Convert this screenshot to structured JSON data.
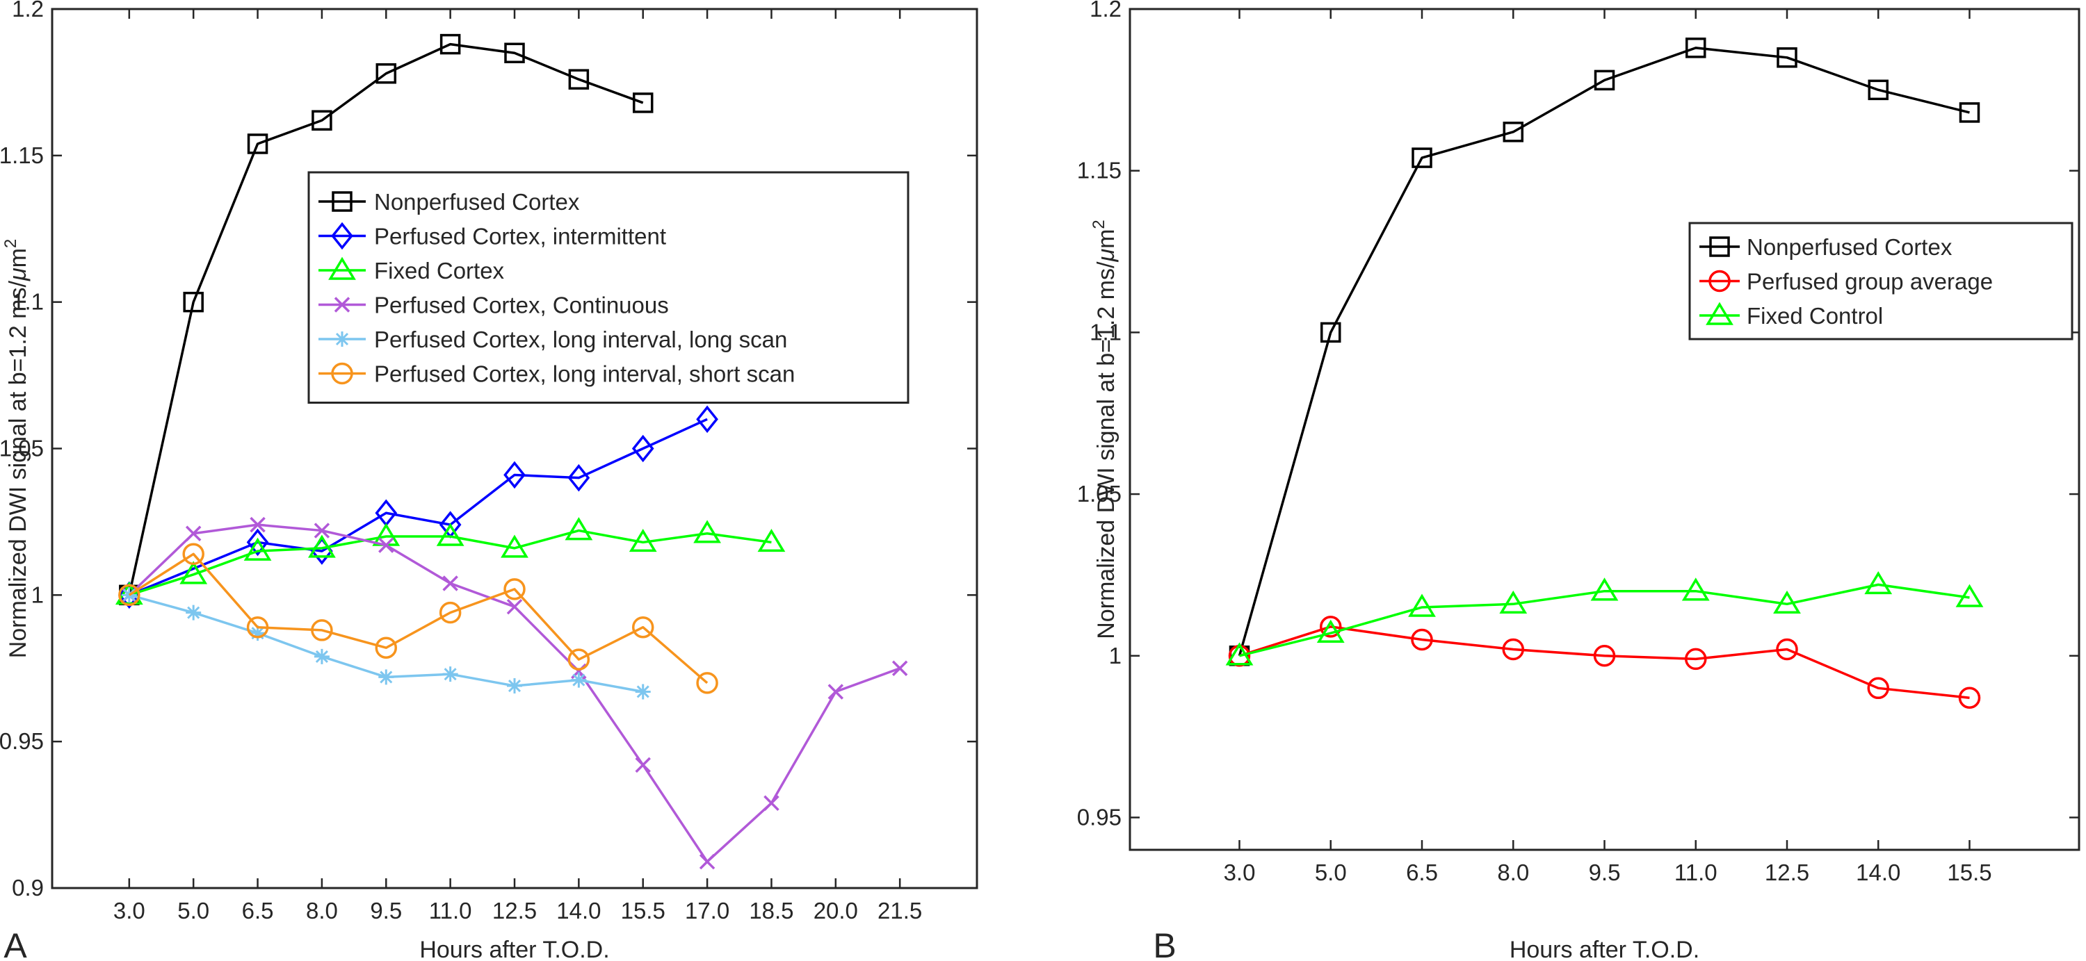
{
  "chart_data": [
    {
      "panel_letter": "A",
      "type": "line",
      "xlabel": "Hours after T.O.D.",
      "ylabel_parts": [
        "Normalized DWI signal at b=1.2 ms/",
        "μ",
        "m",
        "2"
      ],
      "x_ticks": [
        "3.0",
        "5.0",
        "6.5",
        "8.0",
        "9.5",
        "11.0",
        "12.5",
        "14.0",
        "15.5",
        "17.0",
        "18.5",
        "20.0",
        "21.5"
      ],
      "ylim": [
        0.9,
        1.2
      ],
      "y_ticks": [
        "0.9",
        "0.95",
        "1",
        "1.05",
        "1.1",
        "1.15",
        "1.2"
      ],
      "legend_location": "upper-center",
      "series": [
        {
          "name": "Nonperfused Cortex",
          "color": "#000000",
          "marker": "square",
          "x": [
            3.0,
            5.0,
            6.5,
            8.0,
            9.5,
            11.0,
            12.5,
            14.0,
            15.5
          ],
          "y": [
            1.0,
            1.1,
            1.154,
            1.162,
            1.178,
            1.188,
            1.185,
            1.176,
            1.168
          ]
        },
        {
          "name": "Perfused Cortex, intermittent",
          "color": "#0000ff",
          "marker": "diamond",
          "x": [
            3.0,
            6.5,
            8.0,
            9.5,
            11.0,
            12.5,
            14.0,
            15.5,
            17.0
          ],
          "y": [
            1.0,
            1.018,
            1.015,
            1.028,
            1.024,
            1.041,
            1.04,
            1.05,
            1.06
          ]
        },
        {
          "name": "Fixed Cortex",
          "color": "#00ff00",
          "marker": "triangle",
          "x": [
            3.0,
            5.0,
            6.5,
            8.0,
            9.5,
            11.0,
            12.5,
            14.0,
            15.5,
            17.0,
            18.5
          ],
          "y": [
            1.0,
            1.007,
            1.015,
            1.016,
            1.02,
            1.02,
            1.016,
            1.022,
            1.018,
            1.021,
            1.018
          ]
        },
        {
          "name": "Perfused Cortex, Continuous",
          "color": "#b159d8",
          "marker": "x",
          "x": [
            3.0,
            5.0,
            6.5,
            8.0,
            9.5,
            11.0,
            12.5,
            14.0,
            15.5,
            17.0,
            18.5,
            20.0,
            21.5
          ],
          "y": [
            1.0,
            1.021,
            1.024,
            1.022,
            1.017,
            1.004,
            0.996,
            0.974,
            0.942,
            0.909,
            0.929,
            0.967,
            0.975
          ]
        },
        {
          "name": "Perfused Cortex, long interval, long scan",
          "color": "#7dc6ef",
          "marker": "asterisk",
          "x": [
            3.0,
            5.0,
            6.5,
            8.0,
            9.5,
            11.0,
            12.5,
            14.0,
            15.5
          ],
          "y": [
            1.0,
            0.994,
            0.987,
            0.979,
            0.972,
            0.973,
            0.969,
            0.971,
            0.967
          ]
        },
        {
          "name": "Perfused Cortex, long interval, short scan",
          "color": "#f7941d",
          "marker": "circle",
          "x": [
            3.0,
            5.0,
            6.5,
            8.0,
            9.5,
            11.0,
            12.5,
            14.0,
            15.5,
            17.0
          ],
          "y": [
            1.0,
            1.014,
            0.989,
            0.988,
            0.982,
            0.994,
            1.002,
            0.978,
            0.989,
            0.97
          ]
        }
      ]
    },
    {
      "panel_letter": "B",
      "type": "line",
      "xlabel": "Hours after T.O.D.",
      "ylabel_parts": [
        "Normalized DWI signal at b=1.2 ms/",
        "μ",
        "m",
        "2"
      ],
      "x_ticks": [
        "3.0",
        "5.0",
        "6.5",
        "8.0",
        "9.5",
        "11.0",
        "12.5",
        "14.0",
        "15.5"
      ],
      "ylim": [
        0.94,
        1.2
      ],
      "y_ticks": [
        "0.95",
        "1",
        "1.05",
        "1.1",
        "1.15",
        "1.2"
      ],
      "legend_location": "upper-right",
      "series": [
        {
          "name": "Nonperfused Cortex",
          "color": "#000000",
          "marker": "square",
          "x": [
            3.0,
            5.0,
            6.5,
            8.0,
            9.5,
            11.0,
            12.5,
            14.0,
            15.5
          ],
          "y": [
            1.0,
            1.1,
            1.154,
            1.162,
            1.178,
            1.188,
            1.185,
            1.175,
            1.168
          ]
        },
        {
          "name": "Perfused group average",
          "color": "#ff0000",
          "marker": "circle",
          "x": [
            3.0,
            5.0,
            6.5,
            8.0,
            9.5,
            11.0,
            12.5,
            14.0,
            15.5
          ],
          "y": [
            1.0,
            1.009,
            1.005,
            1.002,
            1.0,
            0.999,
            1.002,
            0.99,
            0.987
          ]
        },
        {
          "name": "Fixed Control",
          "color": "#00ff00",
          "marker": "triangle",
          "x": [
            3.0,
            5.0,
            6.5,
            8.0,
            9.5,
            11.0,
            12.5,
            14.0,
            15.5
          ],
          "y": [
            1.0,
            1.007,
            1.015,
            1.016,
            1.02,
            1.02,
            1.016,
            1.022,
            1.018
          ]
        }
      ]
    }
  ]
}
